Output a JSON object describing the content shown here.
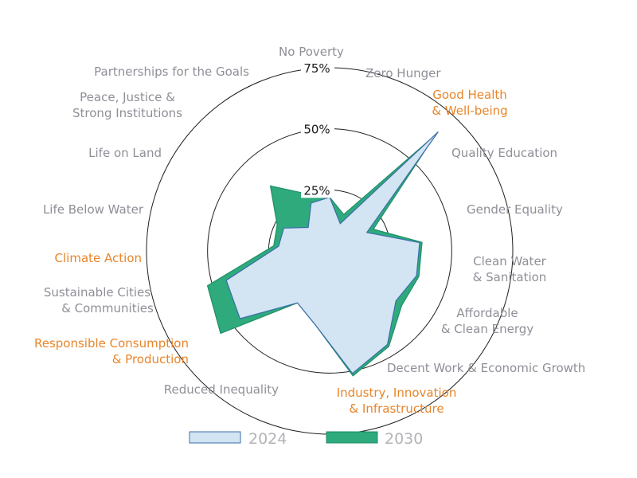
{
  "chart_data": {
    "type": "radar",
    "categories": [
      "No Poverty",
      "Zero Hunger",
      "Good Health & Well-being",
      "Quality Education",
      "Gender Equality",
      "Clean Water & Sanitation",
      "Affordable & Clean Energy",
      "Decent Work & Economic Growth",
      "Industry, Innovation & Infrastructure",
      "Reduced Inequality",
      "Responsible Consumption & Production",
      "Sustainable Cities & Communities",
      "Climate Action",
      "Life Below Water",
      "Life on Land",
      "Peace, Justice & Strong Institutions",
      "Partnerships for the Goals"
    ],
    "highlighted": [
      "Good Health & Well-being",
      "Industry, Innovation & Infrastructure",
      "Responsible Consumption & Production",
      "Climate Action"
    ],
    "series": [
      {
        "name": "2024",
        "color": "#d3e4f3",
        "stroke": "#3a6fa8",
        "values": [
          22,
          12,
          66,
          17,
          37,
          37,
          34,
          45,
          51,
          31,
          25,
          46,
          44,
          21,
          21,
          13,
          21
        ]
      },
      {
        "name": "2030",
        "color": "#2eaa7d",
        "stroke": "#1f8f66",
        "values": [
          22,
          16,
          64,
          20,
          38,
          38,
          37,
          46,
          52,
          31,
          25,
          56,
          52,
          23,
          24,
          36,
          25
        ]
      }
    ],
    "rlim": [
      0,
      75
    ],
    "rings": [
      25,
      50,
      75
    ],
    "ring_labels": [
      "25%",
      "50%",
      "75%"
    ],
    "legend": [
      "2024",
      "2030"
    ],
    "legend_position": "bottom"
  }
}
